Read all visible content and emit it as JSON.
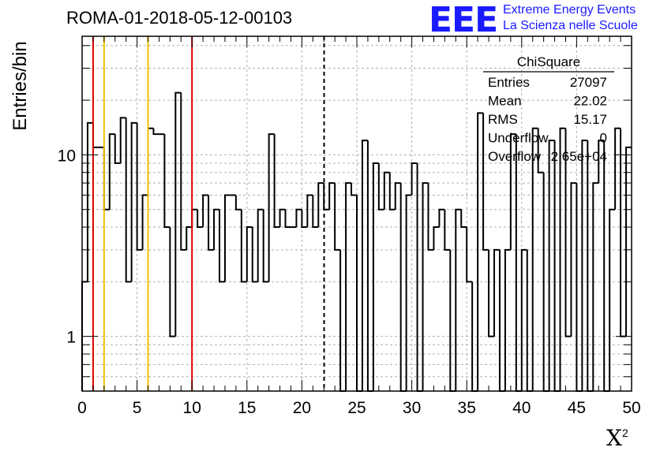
{
  "title": "ROMA-01-2018-05-12-00103",
  "logo": {
    "mark": "EEE",
    "line1": "Extreme Energy Events",
    "line2": "La Scienza nelle Scuole",
    "color": "#1a1aff"
  },
  "stats": {
    "name": "ChiSquare",
    "rows": [
      {
        "label": "Entries",
        "value": "27097"
      },
      {
        "label": "Mean",
        "value": "22.02"
      },
      {
        "label": "RMS",
        "value": "15.17"
      },
      {
        "label": "Underflow",
        "value": "0"
      },
      {
        "label": "Overflow",
        "value": "2.65e+04"
      }
    ]
  },
  "chart_data": {
    "type": "histogram",
    "xlabel": "X",
    "xlabel_superscript": "2",
    "ylabel": "Entries/bin",
    "xlim": [
      0,
      50
    ],
    "ylim": [
      0.5,
      45
    ],
    "y_scale": "log",
    "grid": true,
    "bin_width": 0.5,
    "x_ticks": [
      0,
      5,
      10,
      15,
      20,
      25,
      30,
      35,
      40,
      45,
      50
    ],
    "y_ticks": [
      1,
      10
    ],
    "values": [
      2,
      15,
      11,
      11,
      5,
      13,
      9,
      16,
      2,
      15,
      3,
      6,
      14,
      13,
      13,
      4,
      1,
      22,
      3,
      4,
      5,
      4,
      6,
      3,
      5,
      2,
      6,
      6,
      5,
      2,
      4,
      2,
      5,
      2,
      13,
      4,
      5,
      4,
      4,
      5,
      4,
      6,
      4,
      7,
      5,
      7,
      3,
      0,
      7,
      6,
      0,
      12,
      0,
      9,
      5,
      8,
      5,
      7,
      0,
      6,
      9,
      0,
      7,
      3,
      4,
      5,
      3,
      0,
      5,
      4,
      2,
      0,
      17,
      3,
      1,
      3,
      0,
      3,
      13,
      0,
      3,
      0,
      14,
      8,
      0,
      12,
      0,
      14,
      1,
      7,
      0,
      12,
      0,
      7,
      12,
      0,
      5,
      14,
      1,
      11
    ],
    "reference_lines": [
      {
        "x": 1,
        "color": "#e00000",
        "style": "solid"
      },
      {
        "x": 2,
        "color": "#f0c000",
        "style": "solid"
      },
      {
        "x": 6,
        "color": "#f0c000",
        "style": "solid"
      },
      {
        "x": 10,
        "color": "#e00000",
        "style": "solid"
      },
      {
        "x": 22.02,
        "color": "#000000",
        "style": "dashed"
      }
    ]
  }
}
